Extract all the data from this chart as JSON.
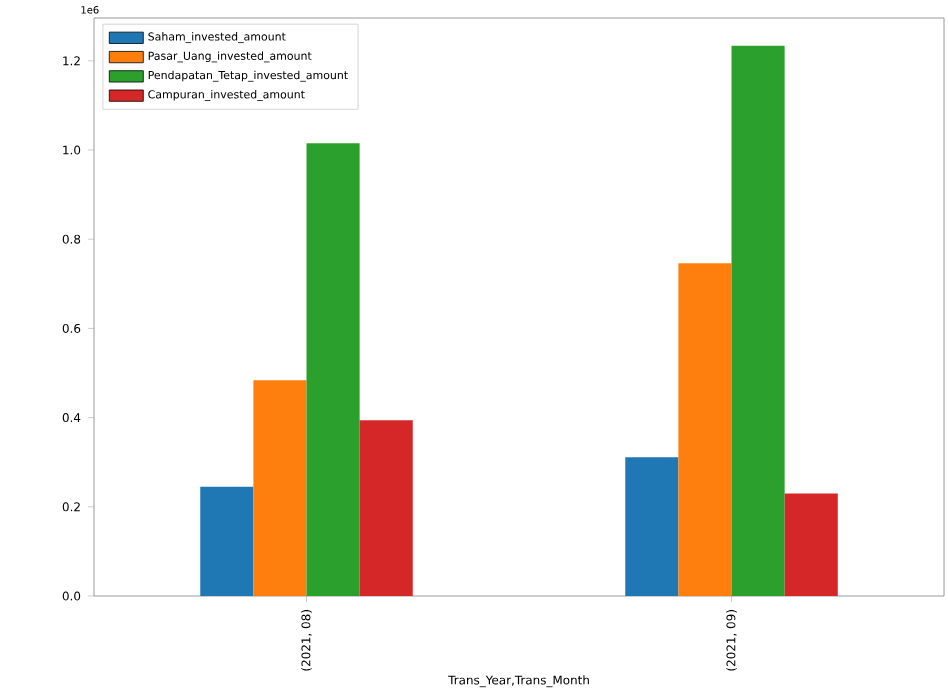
{
  "chart_data": {
    "type": "bar",
    "xlabel": "Trans_Year,Trans_Month",
    "categories": [
      "(2021, 08)",
      "(2021, 09)"
    ],
    "series": [
      {
        "name": "Saham_invested_amount",
        "color": "#1f77b4",
        "values": [
          0.245,
          0.311
        ]
      },
      {
        "name": "Pasar_Uang_invested_amount",
        "color": "#ff7f0e",
        "values": [
          0.484,
          0.746
        ]
      },
      {
        "name": "Pendapatan_Tetap_invested_amount",
        "color": "#2ca02c",
        "values": [
          1.015,
          1.234
        ]
      },
      {
        "name": "Campuran_invested_amount",
        "color": "#d62728",
        "values": [
          0.394,
          0.23
        ]
      }
    ],
    "ylim": [
      0,
      1.296
    ],
    "yticks": [
      {
        "value": 0,
        "label": "0.0"
      },
      {
        "value": 0.2,
        "label": "0.2"
      },
      {
        "value": 0.4,
        "label": "0.4"
      },
      {
        "value": 0.6,
        "label": "0.6"
      },
      {
        "value": 0.8,
        "label": "0.8"
      },
      {
        "value": 1.0,
        "label": "1.0"
      },
      {
        "value": 1.2,
        "label": "1.2"
      }
    ],
    "annotations": [
      "1e6"
    ],
    "legend": "top left",
    "grid": false
  }
}
